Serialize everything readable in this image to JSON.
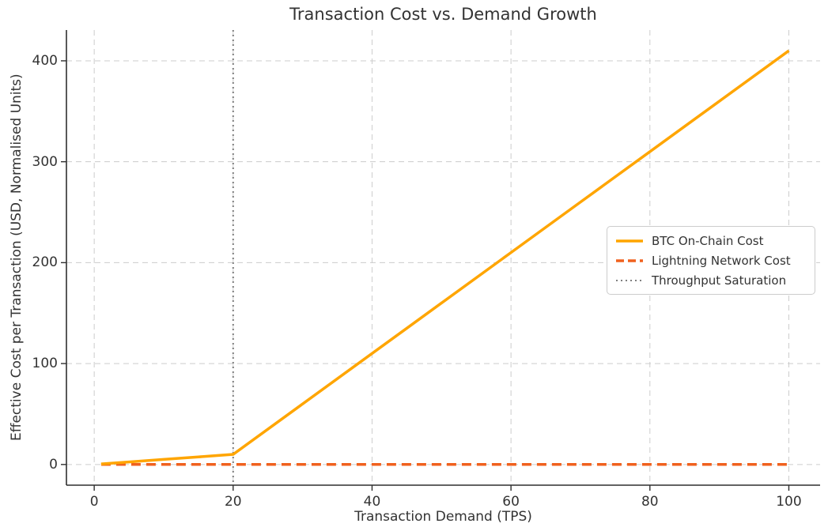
{
  "chart_data": {
    "type": "line",
    "title": "Transaction Cost vs. Demand Growth",
    "xlabel": "Transaction Demand (TPS)",
    "ylabel": "Effective Cost per Transaction (USD, Normalised Units)",
    "xlim": [
      -4,
      104.5
    ],
    "ylim": [
      -20.5,
      430.5
    ],
    "xticks": [
      0,
      20,
      40,
      60,
      80,
      100
    ],
    "yticks": [
      0,
      100,
      200,
      300,
      400
    ],
    "grid": {
      "on": true,
      "style": "dashed",
      "color": "#cccccc"
    },
    "legend": {
      "position": "center-right",
      "border_color": "#cccccc",
      "background": "#ffffff"
    },
    "series": [
      {
        "name": "BTC On-Chain Cost",
        "color": "#FFA500",
        "style": "solid",
        "width": 3.5,
        "x": [
          1,
          5,
          10,
          15,
          20,
          30,
          40,
          50,
          60,
          70,
          80,
          90,
          100
        ],
        "y": [
          0.5,
          2.5,
          5,
          7.5,
          10,
          60,
          110,
          160,
          210,
          260,
          310,
          360,
          410
        ]
      },
      {
        "name": "Lightning Network Cost",
        "color": "#F0611E",
        "style": "dashed",
        "width": 3.5,
        "x": [
          1,
          100
        ],
        "y": [
          0.05,
          0.05
        ]
      }
    ],
    "vline": {
      "name": "Throughput Saturation",
      "x": 20,
      "color": "#7f7f7f",
      "style": "dotted",
      "width": 2
    },
    "axis": {
      "spine_color": "#2f2f2f",
      "text_color": "#333333"
    }
  }
}
